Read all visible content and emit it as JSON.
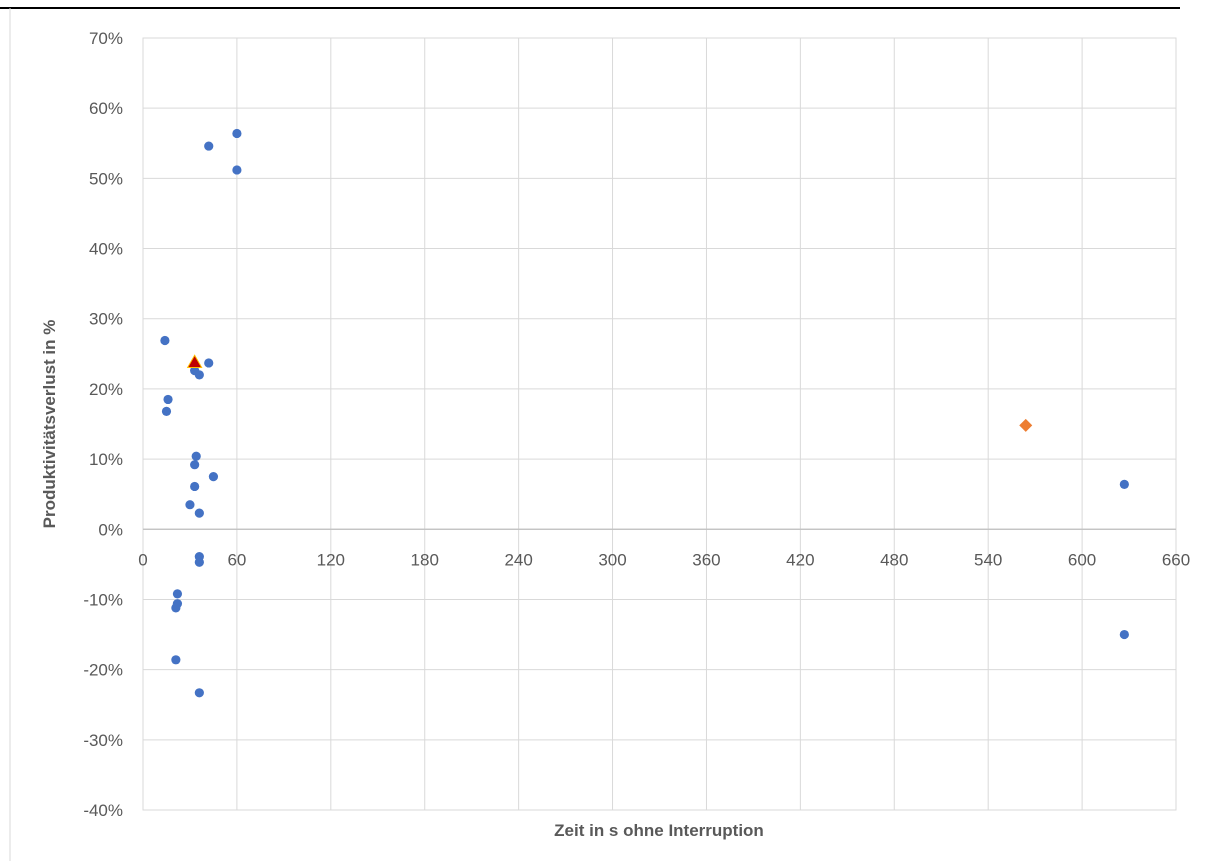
{
  "chart_data": {
    "type": "scatter",
    "title": "",
    "xlabel": "Zeit in s ohne Interruption",
    "ylabel": "Produktivitätsverlust in %",
    "xlim": [
      0,
      660
    ],
    "ylim": [
      -40,
      70
    ],
    "xticks": [
      "0",
      "60",
      "120",
      "180",
      "240",
      "300",
      "360",
      "420",
      "480",
      "540",
      "600",
      "660"
    ],
    "yticks": [
      "70%",
      "60%",
      "50%",
      "40%",
      "30%",
      "20%",
      "10%",
      "0%",
      "-10%",
      "-20%",
      "-30%",
      "-40%"
    ],
    "grid": true,
    "legend": "none",
    "series": [
      {
        "marker": "circle",
        "color": "#4472C4",
        "points": [
          {
            "x": 14,
            "y": 26.9
          },
          {
            "x": 16,
            "y": 18.5
          },
          {
            "x": 15,
            "y": 16.8
          },
          {
            "x": 42,
            "y": 54.6
          },
          {
            "x": 60,
            "y": 56.4
          },
          {
            "x": 60,
            "y": 51.2
          },
          {
            "x": 42,
            "y": 23.7
          },
          {
            "x": 33,
            "y": 22.6
          },
          {
            "x": 36,
            "y": 22.0
          },
          {
            "x": 34,
            "y": 10.4
          },
          {
            "x": 33,
            "y": 9.2
          },
          {
            "x": 45,
            "y": 7.5
          },
          {
            "x": 33,
            "y": 6.1
          },
          {
            "x": 30,
            "y": 3.5
          },
          {
            "x": 36,
            "y": 2.3
          },
          {
            "x": 36,
            "y": -3.9
          },
          {
            "x": 36,
            "y": -4.7
          },
          {
            "x": 22,
            "y": -9.2
          },
          {
            "x": 22,
            "y": -10.6
          },
          {
            "x": 21,
            "y": -11.2
          },
          {
            "x": 21,
            "y": -18.6
          },
          {
            "x": 36,
            "y": -23.3
          },
          {
            "x": 627,
            "y": 6.4
          },
          {
            "x": 627,
            "y": -15.0
          }
        ]
      },
      {
        "marker": "diamond",
        "color": "#ED7D31",
        "points": [
          {
            "x": 564,
            "y": 14.8
          }
        ]
      },
      {
        "marker": "triangle",
        "color": "#C00000",
        "points": [
          {
            "x": 33,
            "y": 23.8
          }
        ]
      }
    ]
  }
}
